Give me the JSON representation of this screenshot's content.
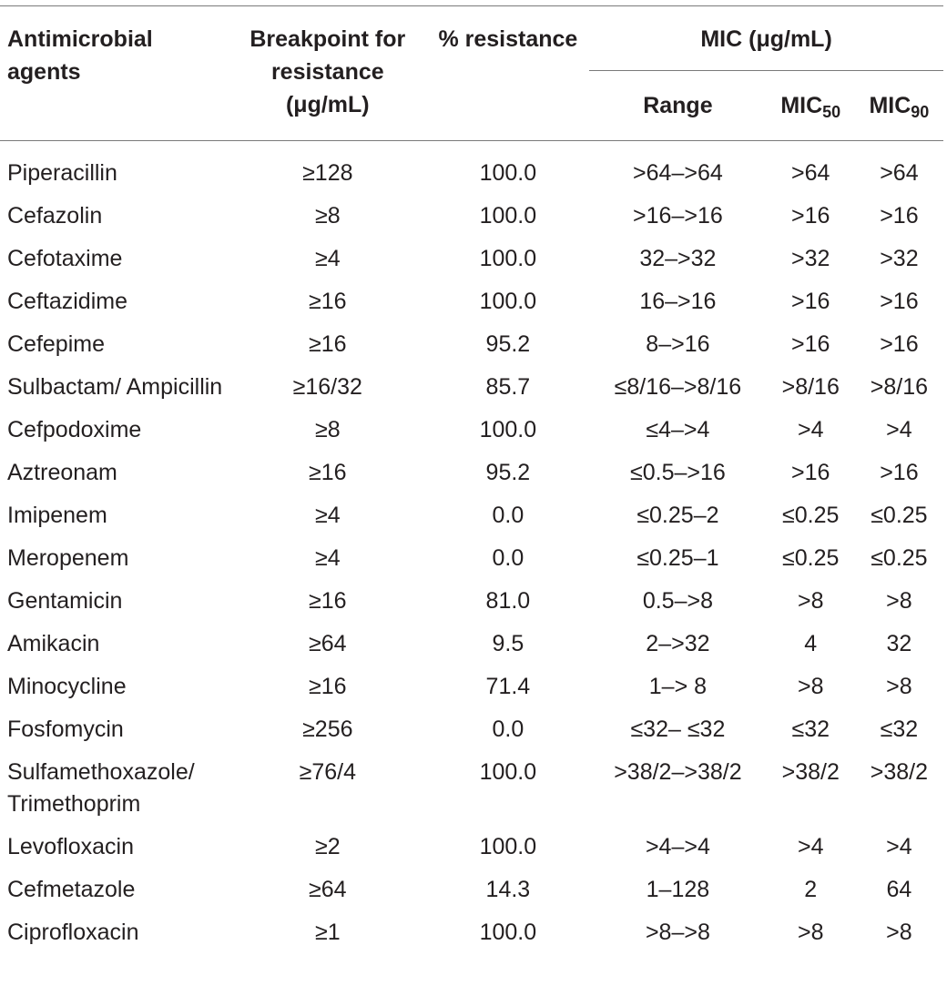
{
  "table": {
    "headers": {
      "agent": "Antimicrobial agents",
      "breakpoint": "Breakpoint for resistance (μg/mL)",
      "resistance": "% resistance",
      "mic_group": "MIC (μg/mL)",
      "range": "Range",
      "mic50_base": "MIC",
      "mic50_sub": "50",
      "mic90_base": "MIC",
      "mic90_sub": "90"
    },
    "rows": [
      {
        "agent": "Piperacillin",
        "breakpoint": "≥128",
        "resistance": "100.0",
        "range": ">64–>64",
        "mic50": ">64",
        "mic90": ">64"
      },
      {
        "agent": "Cefazolin",
        "breakpoint": "≥8",
        "resistance": "100.0",
        "range": ">16–>16",
        "mic50": ">16",
        "mic90": ">16"
      },
      {
        "agent": "Cefotaxime",
        "breakpoint": "≥4",
        "resistance": "100.0",
        "range": "32–>32",
        "mic50": ">32",
        "mic90": ">32"
      },
      {
        "agent": "Ceftazidime",
        "breakpoint": "≥16",
        "resistance": "100.0",
        "range": "16–>16",
        "mic50": ">16",
        "mic90": ">16"
      },
      {
        "agent": "Cefepime",
        "breakpoint": "≥16",
        "resistance": "95.2",
        "range": "8–>16",
        "mic50": ">16",
        "mic90": ">16"
      },
      {
        "agent": "Sulbactam/ Ampicillin",
        "breakpoint": "≥16/32",
        "resistance": "85.7",
        "range": "≤8/16–>8/16",
        "mic50": ">8/16",
        "mic90": ">8/16"
      },
      {
        "agent": "Cefpodoxime",
        "breakpoint": "≥8",
        "resistance": "100.0",
        "range": "≤4–>4",
        "mic50": ">4",
        "mic90": ">4"
      },
      {
        "agent": "Aztreonam",
        "breakpoint": "≥16",
        "resistance": "95.2",
        "range": "≤0.5–>16",
        "mic50": ">16",
        "mic90": ">16"
      },
      {
        "agent": "Imipenem",
        "breakpoint": "≥4",
        "resistance": "0.0",
        "range": "≤0.25–2",
        "mic50": "≤0.25",
        "mic90": "≤0.25"
      },
      {
        "agent": "Meropenem",
        "breakpoint": "≥4",
        "resistance": "0.0",
        "range": "≤0.25–1",
        "mic50": "≤0.25",
        "mic90": "≤0.25"
      },
      {
        "agent": "Gentamicin",
        "breakpoint": "≥16",
        "resistance": "81.0",
        "range": "0.5–>8",
        "mic50": ">8",
        "mic90": ">8"
      },
      {
        "agent": "Amikacin",
        "breakpoint": "≥64",
        "resistance": "9.5",
        "range": "2–>32",
        "mic50": "4",
        "mic90": "32"
      },
      {
        "agent": "Minocycline",
        "breakpoint": "≥16",
        "resistance": "71.4",
        "range": "1–> 8",
        "mic50": ">8",
        "mic90": ">8"
      },
      {
        "agent": "Fosfomycin",
        "breakpoint": "≥256",
        "resistance": "0.0",
        "range": "≤32– ≤32",
        "mic50": "≤32",
        "mic90": "≤32"
      },
      {
        "agent": "Sulfamethoxazole/ Trimethoprim",
        "breakpoint": "≥76/4",
        "resistance": "100.0",
        "range": ">38/2–>38/2",
        "mic50": ">38/2",
        "mic90": ">38/2"
      },
      {
        "agent": "Levofloxacin",
        "breakpoint": "≥2",
        "resistance": "100.0",
        "range": ">4–>4",
        "mic50": ">4",
        "mic90": ">4"
      },
      {
        "agent": "Cefmetazole",
        "breakpoint": "≥64",
        "resistance": "14.3",
        "range": "1–128",
        "mic50": "2",
        "mic90": "64"
      },
      {
        "agent": "Ciprofloxacin",
        "breakpoint": "≥1",
        "resistance": "100.0",
        "range": ">8–>8",
        "mic50": ">8",
        "mic90": ">8"
      }
    ]
  }
}
